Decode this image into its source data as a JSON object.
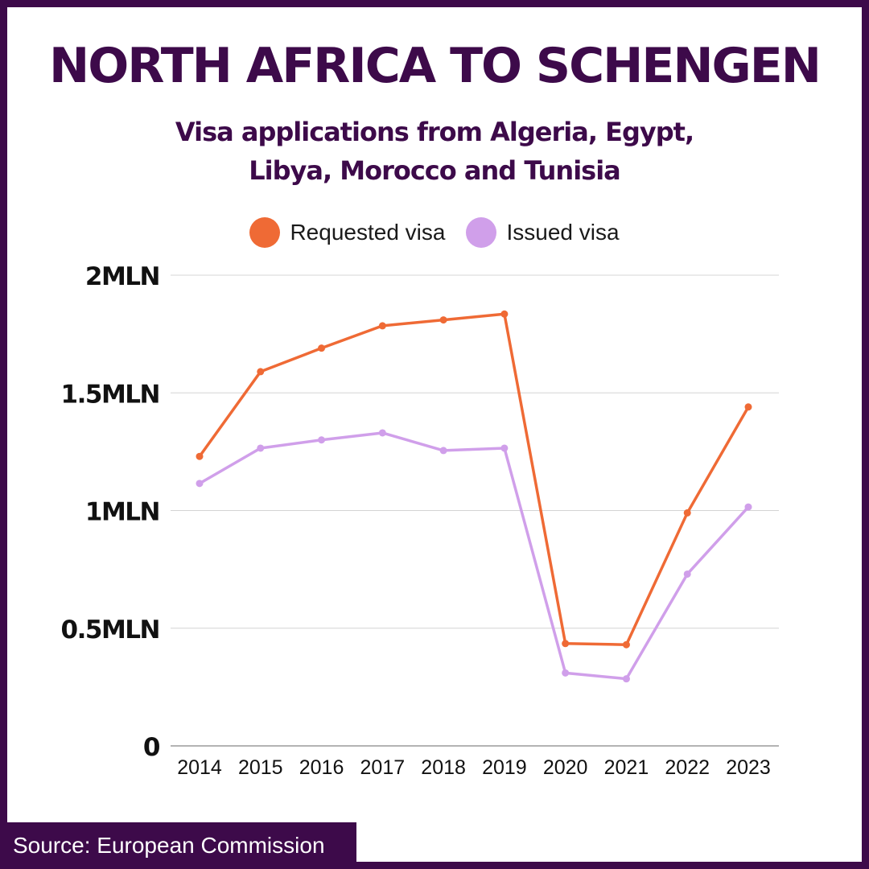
{
  "chart_data": {
    "type": "line",
    "title": "NORTH AFRICA TO SCHENGEN",
    "subtitle": "Visa applications from Algeria, Egypt, Libya, Morocco and Tunisia",
    "x": [
      "2014",
      "2015",
      "2016",
      "2017",
      "2018",
      "2019",
      "2020",
      "2021",
      "2022",
      "2023"
    ],
    "series": [
      {
        "name": "Requested visa",
        "color": "#ef6a35",
        "values": [
          1230000,
          1590000,
          1690000,
          1785000,
          1810000,
          1835000,
          435000,
          430000,
          990000,
          1440000
        ]
      },
      {
        "name": "Issued visa",
        "color": "#d09fea",
        "values": [
          1115000,
          1265000,
          1300000,
          1330000,
          1255000,
          1265000,
          310000,
          285000,
          730000,
          1015000
        ]
      }
    ],
    "yticks": [
      {
        "value": 0,
        "label": "0"
      },
      {
        "value": 500000,
        "label": "0.5MLN"
      },
      {
        "value": 1000000,
        "label": "1MLN"
      },
      {
        "value": 1500000,
        "label": "1.5MLN"
      },
      {
        "value": 2000000,
        "label": "2MLN"
      }
    ],
    "ylim": [
      0,
      2000000
    ],
    "grid": true,
    "legend_position": "top-center"
  },
  "colors": {
    "frame": "#3d0a4a",
    "background": "#ffffff",
    "title": "#3d0a4a"
  },
  "source": "Source: European Commission"
}
